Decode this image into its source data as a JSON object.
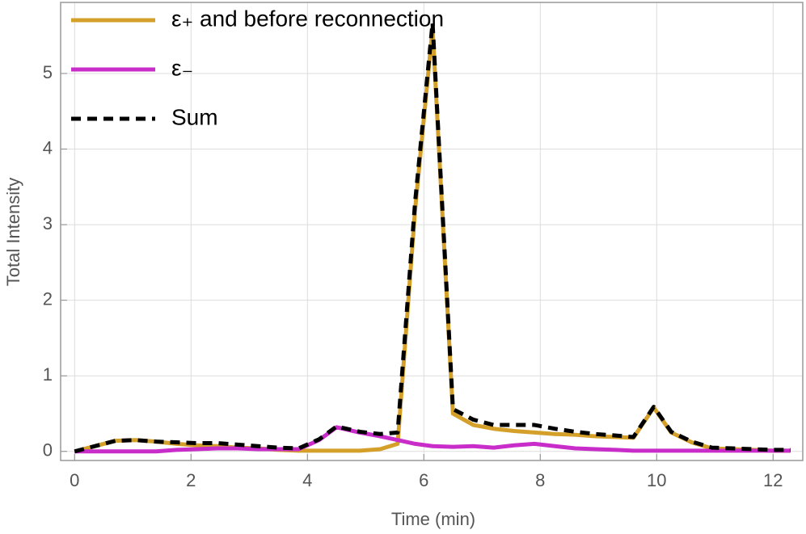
{
  "chart_data": {
    "type": "line",
    "xlabel": "Time (min)",
    "ylabel": "Total Intensity",
    "x": [
      0,
      0.7,
      1.05,
      1.4,
      1.75,
      2.1,
      2.45,
      2.8,
      3.15,
      3.5,
      3.85,
      4.2,
      4.5,
      4.9,
      5.25,
      5.55,
      5.85,
      6.15,
      6.5,
      6.85,
      7.2,
      7.55,
      7.9,
      8.25,
      8.6,
      8.95,
      9.3,
      9.6,
      9.95,
      10.25,
      10.6,
      10.95,
      11.3,
      11.65,
      12.0,
      12.3
    ],
    "series": [
      {
        "name": "ε₊ and before reconnection",
        "color": "#d4a029",
        "style": "solid",
        "values": [
          0,
          0.14,
          0.15,
          0.13,
          0.1,
          0.08,
          0.07,
          0.05,
          0.04,
          0.02,
          0.01,
          0.01,
          0.01,
          0.01,
          0.03,
          0.1,
          3.2,
          5.6,
          0.5,
          0.35,
          0.3,
          0.27,
          0.25,
          0.23,
          0.22,
          0.2,
          0.19,
          0.18,
          0.58,
          0.25,
          0.12,
          0.04,
          0.03,
          0.02,
          0.01,
          0.01
        ]
      },
      {
        "name": "ε₋",
        "color": "#c92dc9",
        "style": "solid",
        "values": [
          0,
          0,
          0,
          0,
          0.02,
          0.03,
          0.04,
          0.04,
          0.03,
          0.03,
          0.03,
          0.15,
          0.32,
          0.25,
          0.2,
          0.15,
          0.1,
          0.07,
          0.06,
          0.07,
          0.05,
          0.08,
          0.1,
          0.07,
          0.04,
          0.03,
          0.02,
          0.01,
          0.01,
          0.01,
          0.01,
          0.01,
          0.01,
          0.01,
          0.01,
          0.01
        ]
      },
      {
        "name": "Sum",
        "color": "#000000",
        "style": "dashed",
        "values": [
          0,
          0.14,
          0.15,
          0.13,
          0.12,
          0.11,
          0.11,
          0.09,
          0.07,
          0.05,
          0.04,
          0.16,
          0.33,
          0.26,
          0.23,
          0.25,
          3.3,
          5.67,
          0.56,
          0.42,
          0.35,
          0.35,
          0.35,
          0.3,
          0.26,
          0.23,
          0.21,
          0.19,
          0.59,
          0.26,
          0.13,
          0.05,
          0.04,
          0.03,
          0.02,
          0.02
        ]
      }
    ],
    "xlim": [
      -0.24,
      12.51
    ],
    "xticks": [
      0,
      2,
      4,
      6,
      8,
      10,
      12
    ],
    "ylim": [
      -0.12,
      5.94
    ],
    "yticks": [
      0,
      1,
      2,
      3,
      4,
      5
    ],
    "grid": true,
    "legend": "upper-left"
  }
}
